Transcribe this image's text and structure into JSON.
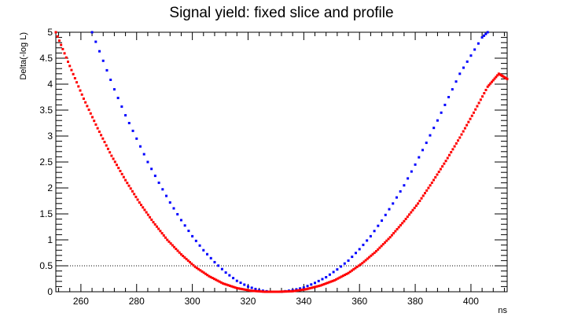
{
  "chart_data": {
    "type": "scatter",
    "title": "Signal yield: fixed slice and profile",
    "xlabel": "ns",
    "ylabel": "Delta(-log L)",
    "xlim": [
      251,
      413
    ],
    "ylim": [
      0,
      5
    ],
    "x_ticks": [
      260,
      280,
      300,
      320,
      340,
      360,
      380,
      400
    ],
    "y_ticks": [
      0,
      0.5,
      1,
      1.5,
      2,
      2.5,
      3,
      3.5,
      4,
      4.5,
      5
    ],
    "x_tick_labels": [
      "260",
      "280",
      "300",
      "320",
      "340",
      "360",
      "380",
      "400"
    ],
    "y_tick_labels": [
      "0",
      "0.5",
      "1",
      "1.5",
      "2",
      "2.5",
      "3",
      "3.5",
      "4",
      "4.5",
      "5"
    ],
    "reference_line": {
      "y": 0.5,
      "style": "dotted"
    },
    "series": [
      {
        "style": "points",
        "color": "#0000ff",
        "points": [
          [
            264,
            5.0
          ],
          [
            268,
            4.45
          ],
          [
            272,
            3.9
          ],
          [
            276,
            3.4
          ],
          [
            280,
            2.95
          ],
          [
            284,
            2.5
          ],
          [
            288,
            2.1
          ],
          [
            292,
            1.72
          ],
          [
            296,
            1.38
          ],
          [
            300,
            1.07
          ],
          [
            304,
            0.8
          ],
          [
            308,
            0.57
          ],
          [
            312,
            0.37
          ],
          [
            316,
            0.21
          ],
          [
            320,
            0.1
          ],
          [
            324,
            0.03
          ],
          [
            328,
            0.0
          ],
          [
            332,
            0.0
          ],
          [
            336,
            0.03
          ],
          [
            340,
            0.08
          ],
          [
            344,
            0.17
          ],
          [
            348,
            0.28
          ],
          [
            352,
            0.43
          ],
          [
            356,
            0.6
          ],
          [
            360,
            0.82
          ],
          [
            364,
            1.07
          ],
          [
            368,
            1.37
          ],
          [
            372,
            1.7
          ],
          [
            376,
            2.05
          ],
          [
            380,
            2.45
          ],
          [
            384,
            2.87
          ],
          [
            388,
            3.3
          ],
          [
            392,
            3.75
          ],
          [
            396,
            4.2
          ],
          [
            400,
            4.55
          ],
          [
            404,
            4.9
          ],
          [
            406,
            5.0
          ]
        ]
      },
      {
        "style": "points",
        "color": "#ff0000",
        "points": [
          [
            251,
            5.0
          ],
          [
            256,
            4.35
          ],
          [
            261,
            3.72
          ],
          [
            266,
            3.15
          ],
          [
            271,
            2.62
          ],
          [
            276,
            2.15
          ],
          [
            281,
            1.72
          ],
          [
            286,
            1.34
          ],
          [
            291,
            1.0
          ],
          [
            296,
            0.72
          ],
          [
            301,
            0.48
          ],
          [
            306,
            0.3
          ],
          [
            311,
            0.16
          ],
          [
            316,
            0.07
          ],
          [
            321,
            0.02
          ],
          [
            326,
            0.0
          ],
          [
            331,
            0.0
          ],
          [
            336,
            0.01
          ],
          [
            341,
            0.05
          ],
          [
            346,
            0.12
          ],
          [
            351,
            0.22
          ],
          [
            356,
            0.36
          ],
          [
            361,
            0.55
          ],
          [
            366,
            0.78
          ],
          [
            371,
            1.05
          ],
          [
            376,
            1.36
          ],
          [
            381,
            1.7
          ],
          [
            386,
            2.1
          ],
          [
            391,
            2.52
          ],
          [
            396,
            2.97
          ],
          [
            401,
            3.45
          ],
          [
            406,
            3.95
          ],
          [
            410,
            4.2
          ],
          [
            413,
            4.1
          ]
        ]
      }
    ]
  }
}
